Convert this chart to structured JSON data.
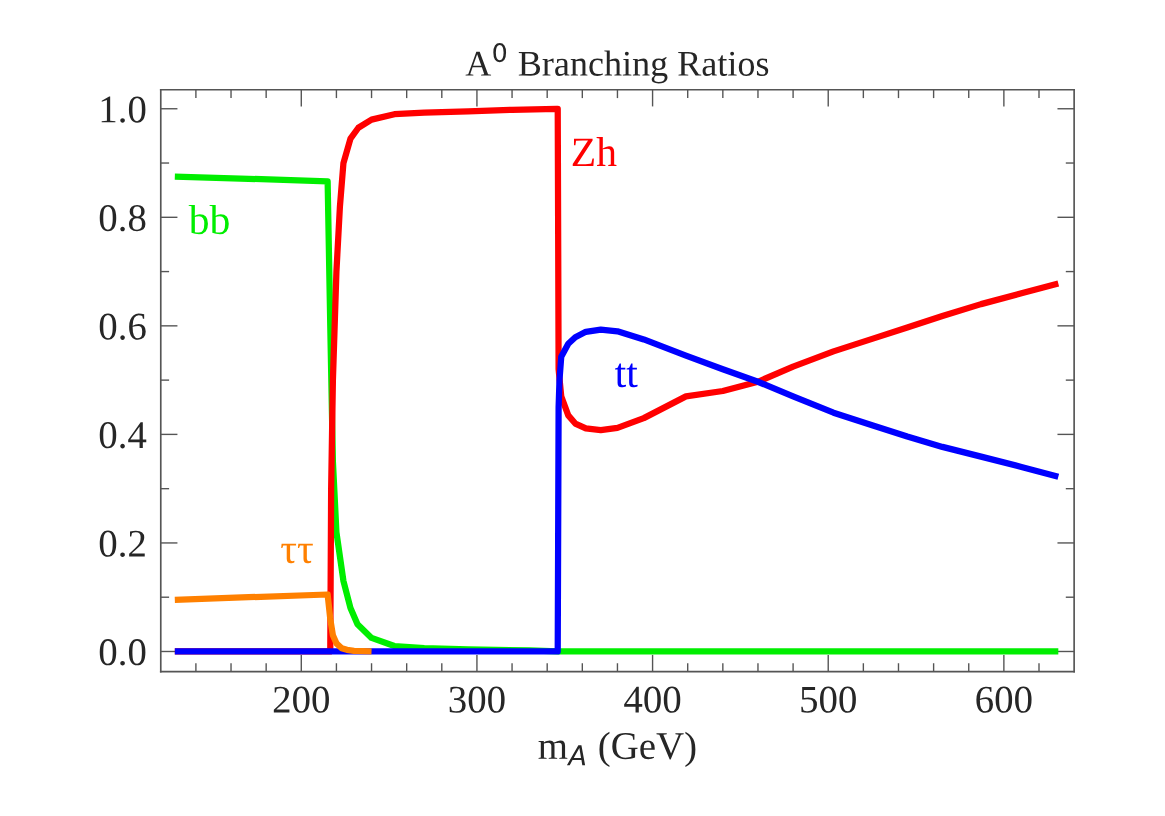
{
  "chart_data": {
    "type": "line",
    "title": "A$^{0}$ Branching Ratios",
    "xlabel": "m$_{A}$ (GeV)",
    "xlim": [
      120,
      640
    ],
    "ylim": [
      -0.037,
      1.035
    ],
    "xticks": [
      {
        "value": 140,
        "label": null
      },
      {
        "value": 160,
        "label": null
      },
      {
        "value": 180,
        "label": null
      },
      200,
      {
        "value": 220,
        "label": null
      },
      {
        "value": 240,
        "label": null
      },
      {
        "value": 260,
        "label": null
      },
      {
        "value": 280,
        "label": null
      },
      300,
      {
        "value": 320,
        "label": null
      },
      {
        "value": 340,
        "label": null
      },
      {
        "value": 360,
        "label": null
      },
      {
        "value": 380,
        "label": null
      },
      400,
      {
        "value": 420,
        "label": null
      },
      {
        "value": 440,
        "label": null
      },
      {
        "value": 460,
        "label": null
      },
      {
        "value": 480,
        "label": null
      },
      500,
      {
        "value": 520,
        "label": null
      },
      {
        "value": 540,
        "label": null
      },
      {
        "value": 560,
        "label": null
      },
      {
        "value": 580,
        "label": null
      },
      600,
      {
        "value": 620,
        "label": null
      }
    ],
    "yticks": [
      {
        "value": 0,
        "label": "0.0"
      },
      {
        "value": 0.1,
        "label": null
      },
      {
        "value": 0.2,
        "label": "0.2"
      },
      {
        "value": 0.3,
        "label": null
      },
      {
        "value": 0.4,
        "label": "0.4"
      },
      {
        "value": 0.5,
        "label": null
      },
      {
        "value": 0.6,
        "label": "0.6"
      },
      {
        "value": 0.7,
        "label": null
      },
      {
        "value": 0.8,
        "label": "0.8"
      },
      {
        "value": 0.9,
        "label": null
      },
      {
        "value": 1.0,
        "label": "1.0"
      }
    ],
    "grid": false,
    "line_style": "solid",
    "marker": "none",
    "series": [
      {
        "name": "bb",
        "color": "#00ee00",
        "x": [
          128,
          170,
          215,
          216.5,
          218,
          220,
          224,
          228,
          232,
          240,
          253,
          270,
          295,
          330,
          346,
          380,
          450,
          550,
          631
        ],
        "values": [
          0.875,
          0.871,
          0.866,
          0.6,
          0.35,
          0.22,
          0.13,
          0.08,
          0.05,
          0.025,
          0.01,
          0.006,
          0.004,
          0.002,
          0.0,
          0.0,
          0.0,
          0.0,
          0.0
        ]
      },
      {
        "name": "Zh",
        "color": "#ff0000",
        "x": [
          128,
          216.5,
          217,
          218,
          220,
          222,
          224,
          228,
          232.5,
          240,
          253,
          270,
          295,
          320,
          345.5,
          346,
          346.5,
          348,
          352,
          356,
          362,
          370.5,
          380,
          395,
          419,
          440,
          460,
          480,
          503,
          525,
          545,
          565,
          587,
          610,
          631
        ],
        "values": [
          0.0,
          0.0,
          0.3,
          0.5,
          0.7,
          0.82,
          0.9,
          0.945,
          0.965,
          0.98,
          0.99,
          0.993,
          0.995,
          0.998,
          1.0,
          1.0,
          0.52,
          0.47,
          0.435,
          0.42,
          0.411,
          0.408,
          0.412,
          0.43,
          0.47,
          0.48,
          0.497,
          0.525,
          0.553,
          0.576,
          0.597,
          0.618,
          0.64,
          0.66,
          0.678
        ]
      },
      {
        "name": "tt",
        "color": "#0000ff",
        "x": [
          128,
          200,
          300,
          346,
          346.5,
          347,
          348,
          352,
          356,
          362,
          370.5,
          380,
          395,
          419,
          440,
          460,
          480,
          503,
          525,
          545,
          565,
          587,
          610,
          631
        ],
        "values": [
          0.0,
          0.0,
          0.0,
          0.0,
          0.45,
          0.5,
          0.543,
          0.567,
          0.579,
          0.589,
          0.593,
          0.59,
          0.575,
          0.545,
          0.52,
          0.497,
          0.47,
          0.44,
          0.417,
          0.396,
          0.377,
          0.359,
          0.34,
          0.322
        ]
      },
      {
        "name": "ττ",
        "color": "#ff8000",
        "x": [
          128,
          170,
          215,
          216.5,
          218,
          220,
          223,
          226,
          230,
          240
        ],
        "values": [
          0.095,
          0.1,
          0.105,
          0.06,
          0.03,
          0.015,
          0.006,
          0.003,
          0.001,
          0.0
        ]
      }
    ]
  }
}
